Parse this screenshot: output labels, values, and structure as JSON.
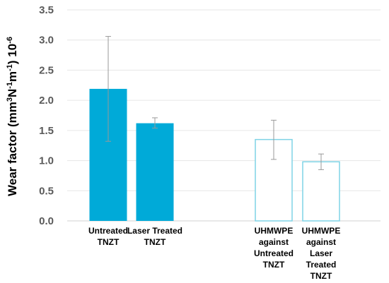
{
  "chart_data": {
    "type": "bar",
    "ylabel_parts": [
      "Wear factor (mm",
      "3",
      "N",
      "-1",
      "m",
      "-1",
      ") 10",
      "-6"
    ],
    "ylim": [
      0,
      3.5
    ],
    "yticks": [
      "0.0",
      "0.5",
      "1.0",
      "1.5",
      "2.0",
      "2.5",
      "3.0",
      "3.5"
    ],
    "grid": true,
    "bars": [
      {
        "label_lines": [
          "Untreated",
          "TNZT"
        ],
        "value": 2.19,
        "err_low": 1.32,
        "err_high": 3.06,
        "style": "filled"
      },
      {
        "label_lines": [
          "Laser Treated",
          "TNZT"
        ],
        "value": 1.62,
        "err_low": 1.54,
        "err_high": 1.71,
        "style": "filled"
      },
      {
        "label_lines": [
          "UHMWPE",
          "against",
          "Untreated",
          "TNZT"
        ],
        "value": 1.35,
        "err_low": 1.02,
        "err_high": 1.67,
        "style": "outline"
      },
      {
        "label_lines": [
          "UHMWPE",
          "against",
          "Laser",
          "Treated",
          "TNZT"
        ],
        "value": 0.98,
        "err_low": 0.85,
        "err_high": 1.11,
        "style": "outline"
      }
    ],
    "colors": {
      "fill": "#00aad8",
      "outline": "#7fd3e6",
      "grid": "#e6e6e6",
      "error_bar": "#999999"
    }
  }
}
